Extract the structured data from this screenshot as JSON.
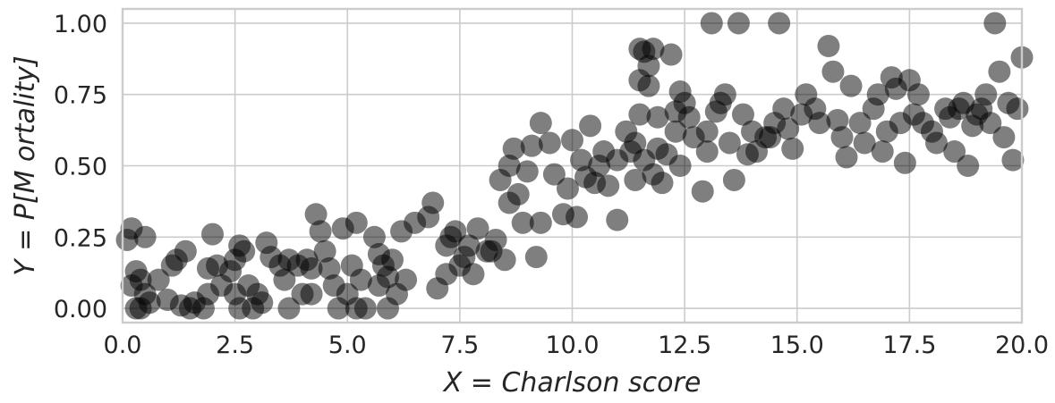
{
  "chart_data": {
    "type": "scatter",
    "title": "",
    "xlabel": "X  = Charlson score",
    "ylabel": "Y  = P[M ortality]",
    "xlim": [
      0,
      20
    ],
    "ylim": [
      -0.05,
      1.05
    ],
    "grid": true,
    "x_ticks": [
      "0.0",
      "2.5",
      "5.0",
      "7.5",
      "10.0",
      "12.5",
      "15.0",
      "17.5",
      "20.0"
    ],
    "y_ticks": [
      "0.00",
      "0.25",
      "0.50",
      "0.75",
      "1.00"
    ],
    "point_color": "#000000",
    "point_alpha": 0.5,
    "points": [
      [
        0.2,
        0.28
      ],
      [
        0.1,
        0.24
      ],
      [
        0.5,
        0.25
      ],
      [
        0.3,
        0.13
      ],
      [
        0.4,
        0.1
      ],
      [
        0.2,
        0.08
      ],
      [
        0.5,
        0.05
      ],
      [
        0.3,
        0.0
      ],
      [
        0.6,
        0.02
      ],
      [
        0.4,
        0.0
      ],
      [
        0.8,
        0.1
      ],
      [
        1.0,
        0.03
      ],
      [
        1.2,
        0.17
      ],
      [
        1.4,
        0.2
      ],
      [
        1.1,
        0.15
      ],
      [
        1.3,
        0.01
      ],
      [
        1.5,
        0.0
      ],
      [
        1.6,
        0.02
      ],
      [
        1.8,
        0.0
      ],
      [
        1.9,
        0.14
      ],
      [
        2.0,
        0.26
      ],
      [
        2.1,
        0.15
      ],
      [
        1.9,
        0.05
      ],
      [
        2.2,
        0.08
      ],
      [
        2.4,
        0.13
      ],
      [
        2.5,
        0.17
      ],
      [
        2.6,
        0.22
      ],
      [
        2.7,
        0.2
      ],
      [
        2.5,
        0.05
      ],
      [
        2.8,
        0.08
      ],
      [
        2.6,
        0.0
      ],
      [
        2.9,
        0.0
      ],
      [
        3.0,
        0.05
      ],
      [
        3.1,
        0.02
      ],
      [
        3.2,
        0.23
      ],
      [
        3.3,
        0.18
      ],
      [
        3.5,
        0.15
      ],
      [
        3.6,
        0.1
      ],
      [
        3.7,
        0.17
      ],
      [
        3.9,
        0.15
      ],
      [
        3.7,
        0.0
      ],
      [
        4.0,
        0.05
      ],
      [
        4.1,
        0.17
      ],
      [
        4.2,
        0.14
      ],
      [
        4.3,
        0.33
      ],
      [
        4.4,
        0.27
      ],
      [
        4.5,
        0.2
      ],
      [
        4.2,
        0.05
      ],
      [
        4.6,
        0.14
      ],
      [
        4.7,
        0.08
      ],
      [
        4.9,
        0.28
      ],
      [
        4.8,
        0.0
      ],
      [
        5.0,
        0.05
      ],
      [
        5.1,
        0.15
      ],
      [
        5.2,
        0.3
      ],
      [
        5.3,
        0.1
      ],
      [
        5.2,
        0.0
      ],
      [
        5.4,
        0.0
      ],
      [
        5.6,
        0.25
      ],
      [
        5.7,
        0.19
      ],
      [
        5.8,
        0.15
      ],
      [
        5.9,
        0.11
      ],
      [
        5.7,
        0.08
      ],
      [
        6.0,
        0.17
      ],
      [
        6.1,
        0.05
      ],
      [
        5.9,
        0.0
      ],
      [
        6.2,
        0.27
      ],
      [
        6.3,
        0.1
      ],
      [
        6.5,
        0.3
      ],
      [
        6.8,
        0.32
      ],
      [
        6.9,
        0.37
      ],
      [
        7.0,
        0.07
      ],
      [
        7.2,
        0.22
      ],
      [
        7.3,
        0.25
      ],
      [
        7.4,
        0.27
      ],
      [
        7.2,
        0.12
      ],
      [
        7.5,
        0.15
      ],
      [
        7.6,
        0.18
      ],
      [
        7.7,
        0.22
      ],
      [
        7.8,
        0.12
      ],
      [
        7.9,
        0.28
      ],
      [
        8.1,
        0.2
      ],
      [
        8.2,
        0.2
      ],
      [
        8.3,
        0.24
      ],
      [
        8.5,
        0.17
      ],
      [
        8.4,
        0.45
      ],
      [
        8.6,
        0.5
      ],
      [
        8.7,
        0.56
      ],
      [
        8.8,
        0.4
      ],
      [
        8.6,
        0.37
      ],
      [
        8.9,
        0.3
      ],
      [
        9.0,
        0.48
      ],
      [
        9.1,
        0.57
      ],
      [
        9.2,
        0.18
      ],
      [
        9.3,
        0.65
      ],
      [
        9.5,
        0.58
      ],
      [
        9.6,
        0.47
      ],
      [
        9.3,
        0.3
      ],
      [
        9.8,
        0.33
      ],
      [
        9.9,
        0.42
      ],
      [
        10.0,
        0.59
      ],
      [
        10.1,
        0.32
      ],
      [
        10.2,
        0.52
      ],
      [
        10.3,
        0.46
      ],
      [
        10.4,
        0.64
      ],
      [
        10.5,
        0.44
      ],
      [
        10.6,
        0.5
      ],
      [
        10.8,
        0.43
      ],
      [
        10.7,
        0.55
      ],
      [
        11.0,
        0.52
      ],
      [
        11.0,
        0.31
      ],
      [
        11.2,
        0.62
      ],
      [
        11.3,
        0.55
      ],
      [
        11.4,
        0.58
      ],
      [
        11.5,
        0.68
      ],
      [
        11.4,
        0.45
      ],
      [
        11.6,
        0.52
      ],
      [
        11.5,
        0.8
      ],
      [
        11.6,
        0.9
      ],
      [
        11.7,
        0.85
      ],
      [
        11.5,
        0.91
      ],
      [
        11.8,
        0.91
      ],
      [
        11.7,
        0.78
      ],
      [
        11.9,
        0.67
      ],
      [
        11.8,
        0.47
      ],
      [
        11.9,
        0.56
      ],
      [
        12.0,
        0.44
      ],
      [
        12.1,
        0.54
      ],
      [
        12.2,
        0.89
      ],
      [
        12.3,
        0.69
      ],
      [
        12.4,
        0.76
      ],
      [
        12.5,
        0.72
      ],
      [
        12.4,
        0.5
      ],
      [
        12.3,
        0.62
      ],
      [
        12.6,
        0.67
      ],
      [
        12.7,
        0.6
      ],
      [
        12.9,
        0.41
      ],
      [
        13.0,
        0.55
      ],
      [
        13.1,
        1.0
      ],
      [
        13.0,
        0.62
      ],
      [
        13.2,
        0.69
      ],
      [
        13.3,
        0.72
      ],
      [
        13.4,
        0.75
      ],
      [
        13.5,
        0.58
      ],
      [
        13.6,
        0.45
      ],
      [
        13.7,
        1.0
      ],
      [
        13.8,
        0.68
      ],
      [
        13.9,
        0.54
      ],
      [
        14.0,
        0.62
      ],
      [
        14.1,
        0.55
      ],
      [
        14.3,
        0.6
      ],
      [
        14.4,
        0.6
      ],
      [
        14.5,
        0.65
      ],
      [
        14.6,
        1.0
      ],
      [
        14.7,
        0.7
      ],
      [
        14.8,
        0.63
      ],
      [
        14.9,
        0.56
      ],
      [
        15.1,
        0.68
      ],
      [
        15.2,
        0.75
      ],
      [
        15.4,
        0.7
      ],
      [
        15.5,
        0.65
      ],
      [
        15.7,
        0.92
      ],
      [
        15.8,
        0.83
      ],
      [
        15.9,
        0.66
      ],
      [
        16.0,
        0.6
      ],
      [
        16.1,
        0.53
      ],
      [
        16.2,
        0.78
      ],
      [
        16.4,
        0.65
      ],
      [
        16.5,
        0.58
      ],
      [
        16.7,
        0.7
      ],
      [
        16.8,
        0.75
      ],
      [
        16.9,
        0.55
      ],
      [
        17.0,
        0.62
      ],
      [
        17.1,
        0.81
      ],
      [
        17.2,
        0.77
      ],
      [
        17.3,
        0.65
      ],
      [
        17.4,
        0.51
      ],
      [
        17.5,
        0.8
      ],
      [
        17.6,
        0.68
      ],
      [
        17.7,
        0.75
      ],
      [
        17.8,
        0.65
      ],
      [
        18.0,
        0.62
      ],
      [
        18.1,
        0.58
      ],
      [
        18.3,
        0.7
      ],
      [
        18.4,
        0.67
      ],
      [
        18.5,
        0.55
      ],
      [
        18.6,
        0.7
      ],
      [
        18.7,
        0.72
      ],
      [
        18.8,
        0.5
      ],
      [
        18.9,
        0.64
      ],
      [
        19.0,
        0.68
      ],
      [
        19.1,
        0.7
      ],
      [
        19.2,
        0.75
      ],
      [
        19.3,
        0.65
      ],
      [
        19.4,
        1.0
      ],
      [
        19.5,
        0.83
      ],
      [
        19.6,
        0.6
      ],
      [
        19.7,
        0.72
      ],
      [
        19.8,
        0.52
      ],
      [
        19.9,
        0.7
      ],
      [
        20.0,
        0.88
      ]
    ]
  }
}
